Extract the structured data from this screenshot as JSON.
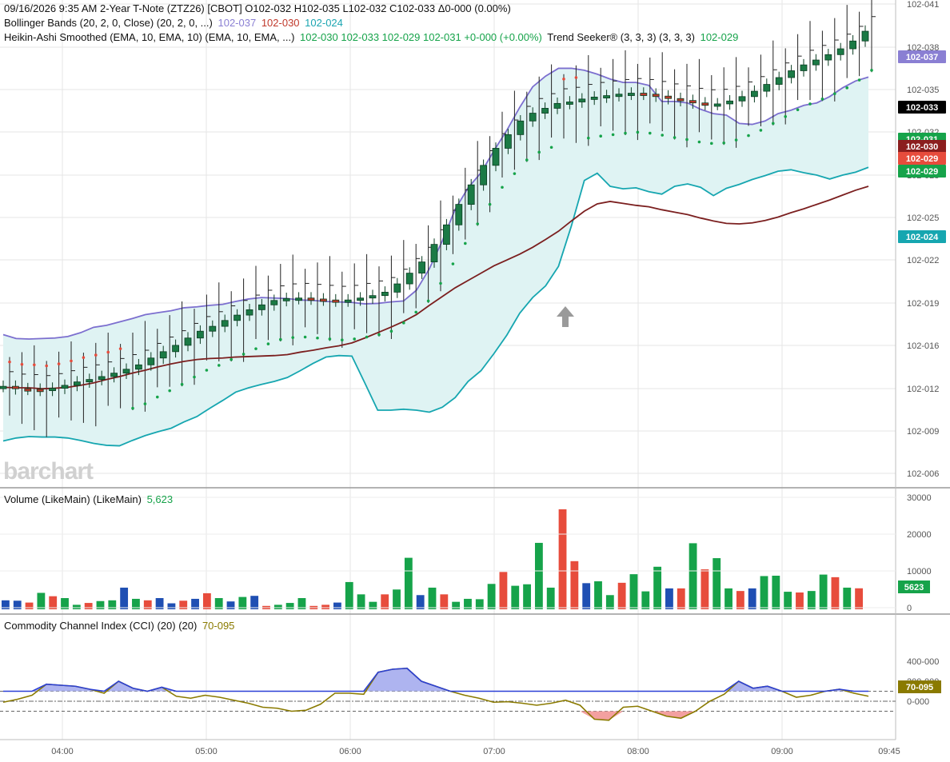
{
  "header": {
    "line1": "09/16/2026  9:35 AM 2-Year T-Note (ZTZ26) [CBOT]  O102-032  H102-035  L102-032  C102-033  Δ0-000 (0.00%)",
    "bb_label": "Bollinger Bands (20, 2, 0, Close)  (20, 2, 0, ...)",
    "bb_upper": "102-037",
    "bb_mid": "102-030",
    "bb_lower": "102-024",
    "ha_label": "Heikin-Ashi Smoothed (EMA, 10, EMA, 10)  (EMA, 10, EMA, ...)",
    "ha_values": "102-030  102-033  102-029  102-031  +0-000 (+0.00%)",
    "ts_label": "Trend Seeker® (3, 3, 3)  (3, 3, 3)",
    "ts_value": "102-029"
  },
  "volume_panel": {
    "label": "Volume (LikeMain)  (LikeMain)",
    "value": "5,623"
  },
  "cci_panel": {
    "label": "Commodity Channel Index (CCI) (20)  (20)",
    "value": "70-095"
  },
  "watermark": "barchart",
  "colors": {
    "up": "#16a34a",
    "down": "#e74c3c",
    "neutral": "#1f4fb3",
    "bb_band": "#7c6fcf",
    "bb_lower": "#16a6b0",
    "bb_mid": "#7b1f1f",
    "fill": "#dff3f3",
    "cci_line": "#8a7a00",
    "cci_blue": "#2b3fd6"
  },
  "chart_data": [
    {
      "type": "candlestick",
      "title": "2-Year T-Note (ZTZ26) [CBOT]",
      "y_axis_ticks": [
        "102-041",
        "102-038",
        "102-035",
        "102-032",
        "102-028",
        "102-025",
        "102-022",
        "102-019",
        "102-016",
        "102-012",
        "102-009",
        "102-006"
      ],
      "x_axis_ticks": [
        "04:00",
        "05:00",
        "06:00",
        "07:00",
        "08:00",
        "09:00",
        "09:45"
      ],
      "price_tags": [
        {
          "label": "102-037",
          "color": "#8a7fd3"
        },
        {
          "label": "102-033",
          "color": "#000000"
        },
        {
          "label": "102-031",
          "color": "#16a34a"
        },
        {
          "label": "102-030",
          "color": "#8b1e1e"
        },
        {
          "label": "102-029",
          "color": "#e74c3c"
        },
        {
          "label": "102-029",
          "color": "#16a34a"
        },
        {
          "label": "102-024",
          "color": "#16a6b0"
        }
      ],
      "bb_upper": [
        23.2,
        22.4,
        22.3,
        22.4,
        22.5,
        22.8,
        23.6,
        24.7,
        25.1,
        25.8,
        26.5,
        27.3,
        27.7,
        28.1,
        28.7,
        28.9,
        29.2,
        29.4,
        30.0,
        30.5,
        30.8,
        30.7,
        30.6,
        30.3,
        30.2,
        30.0,
        29.9,
        29.8,
        29.5,
        29.6,
        29.9,
        30.1,
        32.3,
        36.7,
        42.4,
        48.9,
        53.3,
        56.4,
        60.9,
        65.1,
        69.8,
        74.0,
        76.2,
        77.8,
        77.8,
        77.4,
        76.6,
        75.6,
        74.9,
        74.9,
        74.3,
        71.0,
        71.0,
        70.7,
        69.4,
        68.5,
        68.2,
        66.5,
        66.3,
        67.0,
        68.5,
        69.2,
        70.2,
        70.7,
        72.0,
        73.8,
        75.2,
        76.0
      ],
      "bb_mid": [
        12.4,
        12.3,
        12.3,
        12.1,
        12.2,
        12.4,
        12.8,
        13.3,
        14.0,
        14.6,
        15.3,
        15.9,
        16.6,
        17.2,
        17.7,
        18.1,
        18.3,
        18.4,
        18.6,
        18.7,
        18.8,
        18.9,
        19.1,
        19.6,
        20.0,
        20.5,
        20.9,
        21.5,
        22.5,
        23.6,
        24.7,
        25.9,
        27.3,
        29.2,
        31.0,
        32.8,
        34.3,
        35.8,
        37.3,
        38.5,
        39.7,
        41.1,
        42.7,
        44.4,
        46.5,
        48.5,
        50.0,
        50.5,
        50.1,
        49.7,
        49.4,
        48.8,
        48.3,
        47.8,
        47.1,
        46.5,
        46.0,
        45.9,
        46.1,
        46.6,
        47.3,
        48.2,
        49.0,
        49.9,
        50.8,
        51.8,
        52.8,
        53.6
      ],
      "bb_lower": [
        1.4,
        2.0,
        2.3,
        2.2,
        2.2,
        2.0,
        1.5,
        0.9,
        0.5,
        0.4,
        1.5,
        2.5,
        3.3,
        4.0,
        5.3,
        6.4,
        8.1,
        9.7,
        11.4,
        12.3,
        13.0,
        13.6,
        14.4,
        15.8,
        17.3,
        18.6,
        18.9,
        18.8,
        13.3,
        7.7,
        7.7,
        7.9,
        7.7,
        7.3,
        8.3,
        10.3,
        13.6,
        15.8,
        19.3,
        23.1,
        27.6,
        30.8,
        33.2,
        37.2,
        45.5,
        54.8,
        56.3,
        53.6,
        53.1,
        53.3,
        52.5,
        52.0,
        53.6,
        54.1,
        53.4,
        51.7,
        53.2,
        54.0,
        55.0,
        55.8,
        56.7,
        57.0,
        56.4,
        55.9,
        55.1,
        55.9,
        56.5,
        57.5
      ],
      "ha_close": [
        12.6,
        12.1,
        12.0,
        11.8,
        12.2,
        12.8,
        13.5,
        14.0,
        14.6,
        15.3,
        16.1,
        17.0,
        18.4,
        19.7,
        21.0,
        22.5,
        23.9,
        24.9,
        26.1,
        27.2,
        28.3,
        29.3,
        30.2,
        30.6,
        30.7,
        30.5,
        30.3,
        30.1,
        30.3,
        30.7,
        31.2,
        31.9,
        33.6,
        35.8,
        38.1,
        41.7,
        45.7,
        49.9,
        53.9,
        57.9,
        61.4,
        64.2,
        67.0,
        68.6,
        69.6,
        70.6,
        70.9,
        71.5,
        71.9,
        72.2,
        72.5,
        72.7,
        72.5,
        72.1,
        71.6,
        71.2,
        70.7,
        70.4,
        70.5,
        71.1,
        72.0,
        73.1,
        74.5,
        75.9,
        77.3,
        78.5,
        79.5,
        80.6,
        81.8,
        83.4,
        85.4
      ],
      "ts_dots": [
        {
          "start": 0,
          "end": 9,
          "value": "red"
        },
        {
          "start": 10,
          "end": 44,
          "value": "green"
        },
        {
          "start": 45,
          "end": 46,
          "value": "red"
        },
        {
          "start": 47,
          "end": 70,
          "value": "green"
        }
      ],
      "cci": [
        -10,
        20,
        60,
        170,
        160,
        150,
        120,
        80,
        200,
        130,
        100,
        140,
        50,
        30,
        60,
        40,
        10,
        -20,
        -60,
        -70,
        -100,
        -90,
        -30,
        80,
        80,
        70,
        290,
        320,
        330,
        200,
        150,
        100,
        60,
        30,
        -10,
        -5,
        -20,
        -40,
        -20,
        10,
        -40,
        -180,
        -190,
        -60,
        -50,
        -100,
        -150,
        -170,
        -100,
        0,
        70,
        200,
        130,
        150,
        100,
        40,
        60,
        100,
        120,
        80,
        50
      ],
      "cci_ticks": [
        "400-000",
        "200-000",
        "0-000"
      ],
      "volume": [
        2400,
        2300,
        1800,
        4400,
        3500,
        3000,
        1200,
        1700,
        2200,
        2400,
        5800,
        2800,
        2400,
        3000,
        1600,
        2300,
        2800,
        4300,
        3000,
        2100,
        3300,
        3600,
        900,
        1200,
        1700,
        3000,
        900,
        1200,
        1800,
        7300,
        4000,
        2000,
        4000,
        5300,
        13800,
        3800,
        5800,
        4000,
        2000,
        2800,
        2700,
        6800,
        10000,
        6300,
        6700,
        17800,
        5800,
        26800,
        12900,
        7000,
        7500,
        3800,
        7100,
        9400,
        4800,
        11400,
        5600,
        5600,
        17700,
        10700,
        13700,
        5600,
        4900,
        5600,
        8900,
        9000,
        4700,
        4500,
        4900,
        9300,
        8600,
        5800,
        5623
      ],
      "volume_ticks": [
        "30000",
        "20000",
        "10000",
        "0"
      ],
      "volume_last": "5623"
    }
  ]
}
